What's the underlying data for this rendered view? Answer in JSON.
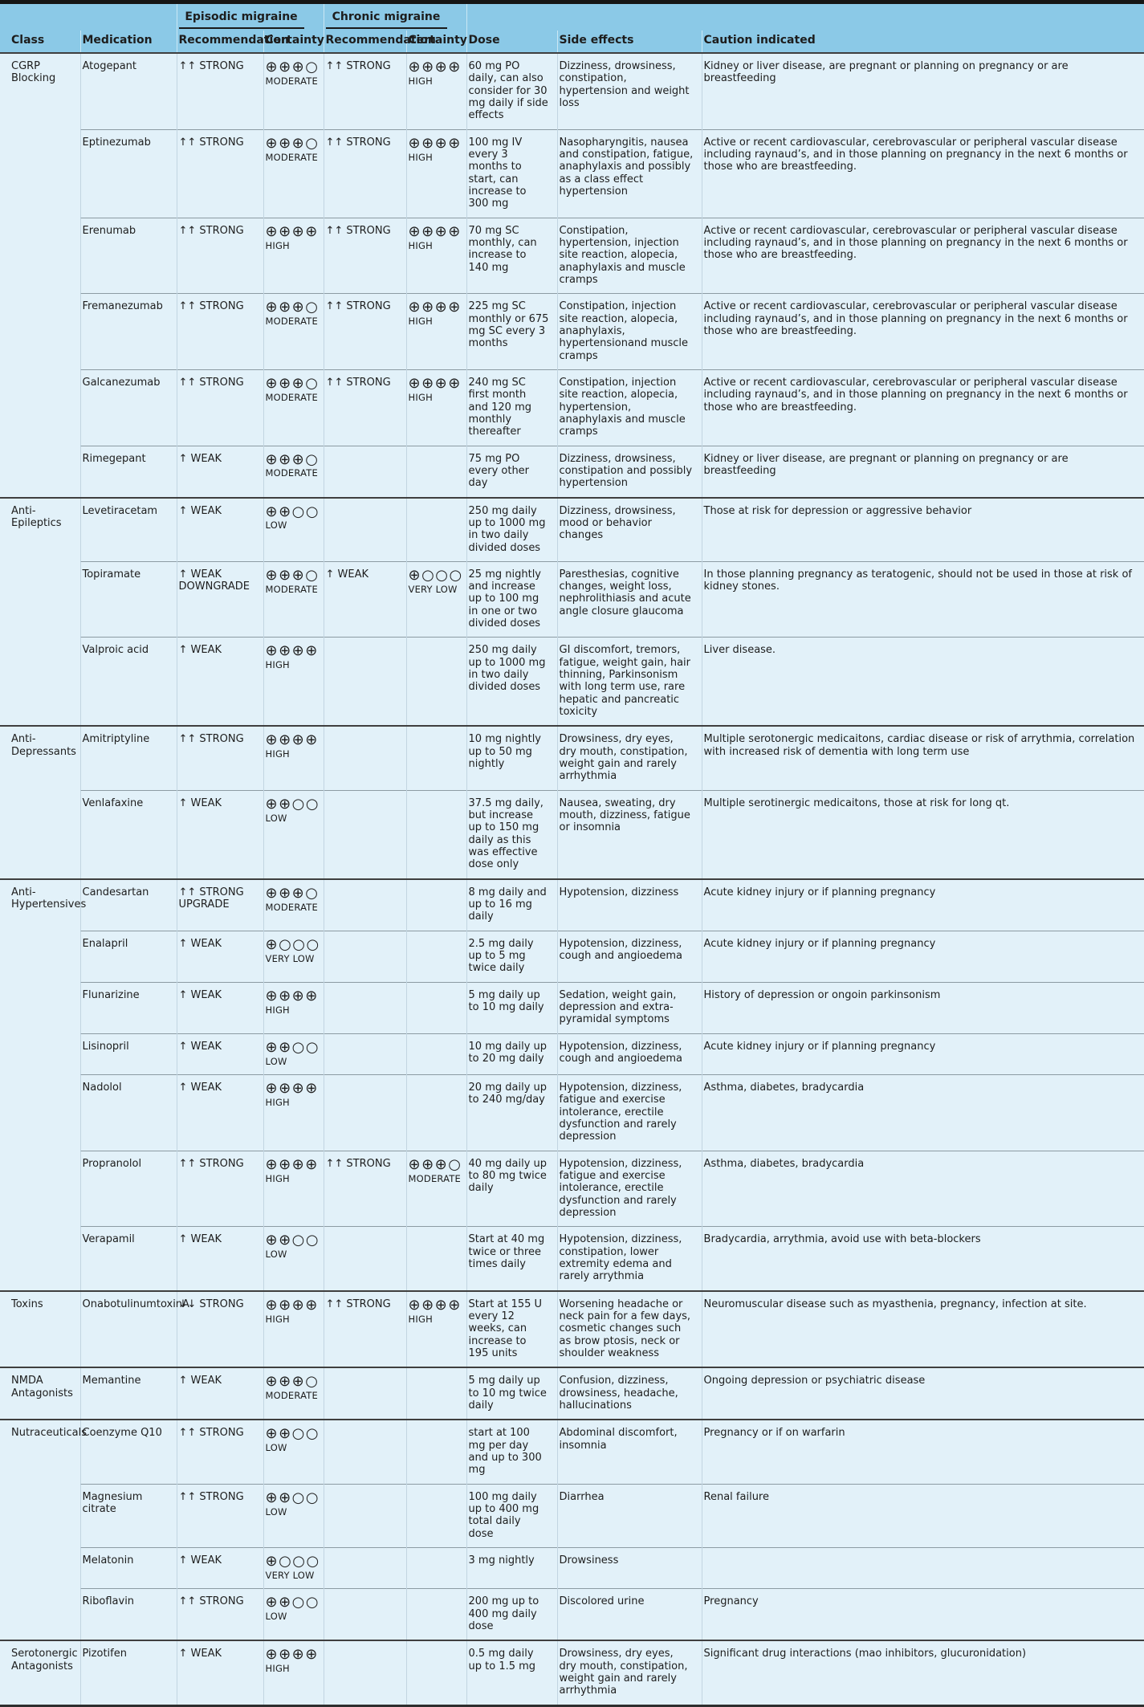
{
  "colors": {
    "header_bg": "#8bc9e7",
    "row_bg": "#e2f1f9",
    "top_rule": "#151515",
    "group_rule": "#3f3f3f",
    "inner_rule": "#8c9ba3",
    "text": "#1d1d1d"
  },
  "table": {
    "column_groups": [
      "Episodic migraine",
      "Chronic migraine"
    ],
    "headers": [
      "Class",
      "Medication",
      "Recommendation",
      "Certainty",
      "Recommendation",
      "Certainty",
      "Dose",
      "Side effects",
      "Caution indicated"
    ],
    "groups": [
      {
        "class": "CGRP Blocking",
        "medications": [
          {
            "name": "Atogepant",
            "ep_rec": "↑↑ STRONG",
            "ep_sym": "⊕⊕⊕○",
            "ep_lvl": "MODERATE",
            "ch_rec": "↑↑ STRONG",
            "ch_sym": "⊕⊕⊕⊕",
            "ch_lvl": "HIGH",
            "dose": "60 mg PO daily, can also consider for 30 mg daily if side effects",
            "side_effects": "Dizziness, drowsiness, constipation, hypertension and weight loss",
            "caution": "Kidney or liver disease, are pregnant or planning on pregnancy or are breastfeeding"
          },
          {
            "name": "Eptinezumab",
            "ep_rec": "↑↑ STRONG",
            "ep_sym": "⊕⊕⊕○",
            "ep_lvl": "MODERATE",
            "ch_rec": "↑↑ STRONG",
            "ch_sym": "⊕⊕⊕⊕",
            "ch_lvl": "HIGH",
            "dose": "100 mg IV every 3 months to start, can increase to 300 mg",
            "side_effects": "Nasopharyngitis, nausea and constipation, fatigue, anaphylaxis and possibly as a class effect hypertension",
            "caution": "Active or recent cardiovascular, cerebrovascular or peripheral vascular disease including raynaud’s, and in those planning on pregnancy in the next 6 months or those who are breastfeeding."
          },
          {
            "name": "Erenumab",
            "ep_rec": "↑↑ STRONG",
            "ep_sym": "⊕⊕⊕⊕",
            "ep_lvl": "HIGH",
            "ch_rec": "↑↑ STRONG",
            "ch_sym": "⊕⊕⊕⊕",
            "ch_lvl": "HIGH",
            "dose": "70 mg SC monthly, can increase to 140 mg",
            "side_effects": "Constipation, hypertension, injection site reaction, alopecia, anaphylaxis and muscle cramps",
            "caution": "Active or recent cardiovascular, cerebrovascular or peripheral vascular disease including raynaud’s, and in those planning on pregnancy in the next 6 months or those who are breastfeeding."
          },
          {
            "name": "Fremanezumab",
            "ep_rec": "↑↑ STRONG",
            "ep_sym": "⊕⊕⊕○",
            "ep_lvl": "MODERATE",
            "ch_rec": "↑↑ STRONG",
            "ch_sym": "⊕⊕⊕⊕",
            "ch_lvl": "HIGH",
            "dose": "225 mg SC monthly or 675 mg SC every 3 months",
            "side_effects": "Constipation, injection site reaction, alopecia, anaphylaxis, hypertensionand muscle cramps",
            "caution": "Active or recent cardiovascular, cerebrovascular or peripheral vascular disease including raynaud’s, and in those planning on pregnancy in the next 6 months or those who are breastfeeding."
          },
          {
            "name": "Galcanezumab",
            "ep_rec": "↑↑ STRONG",
            "ep_sym": "⊕⊕⊕○",
            "ep_lvl": "MODERATE",
            "ch_rec": "↑↑ STRONG",
            "ch_sym": "⊕⊕⊕⊕",
            "ch_lvl": "HIGH",
            "dose": "240 mg SC first month and 120 mg monthly thereafter",
            "side_effects": "Constipation, injection site reaction, alopecia, hypertension, anaphylaxis and muscle cramps",
            "caution": "Active or recent cardiovascular, cerebrovascular or peripheral vascular disease including raynaud’s, and in those planning on pregnancy in the next 6 months or those who are breastfeeding."
          },
          {
            "name": "Rimegepant",
            "ep_rec": "↑ WEAK",
            "ep_sym": "⊕⊕⊕○",
            "ep_lvl": "MODERATE",
            "ch_rec": "",
            "ch_sym": "",
            "ch_lvl": "",
            "dose": "75 mg PO every other day",
            "side_effects": "Dizziness, drowsiness, constipation and possibly hypertension",
            "caution": "Kidney or liver disease, are pregnant or planning on pregnancy or are breastfeeding"
          }
        ]
      },
      {
        "class": "Anti-Epileptics",
        "medications": [
          {
            "name": "Levetiracetam",
            "ep_rec": "↑ WEAK",
            "ep_sym": "⊕⊕○○",
            "ep_lvl": "LOW",
            "ch_rec": "",
            "ch_sym": "",
            "ch_lvl": "",
            "dose": "250 mg daily up to 1000 mg in two daily divided doses",
            "side_effects": "Dizziness, drowsiness, mood or behavior changes",
            "caution": "Those at risk for depression or aggressive behavior"
          },
          {
            "name": "Topiramate",
            "ep_rec": "↑ WEAK\nDOWNGRADE",
            "ep_sym": "⊕⊕⊕○",
            "ep_lvl": "MODERATE",
            "ch_rec": "↑ WEAK",
            "ch_sym": "⊕○○○",
            "ch_lvl": "VERY LOW",
            "dose": "25 mg nightly and increase up to 100 mg in one or two divided doses",
            "side_effects": "Paresthesias, cognitive changes, weight loss, nephrolithiasis and acute angle closure glaucoma",
            "caution": "In those planning pregnancy as teratogenic, should not be used in those at risk of kidney stones."
          },
          {
            "name": "Valproic acid",
            "ep_rec": "↑ WEAK",
            "ep_sym": "⊕⊕⊕⊕",
            "ep_lvl": "HIGH",
            "ch_rec": "",
            "ch_sym": "",
            "ch_lvl": "",
            "dose": "250 mg daily up to 1000 mg in two daily divided doses",
            "side_effects": "GI discomfort, tremors, fatigue, weight gain, hair thinning, Parkinsonism with long term use, rare hepatic and pancreatic toxicity",
            "caution": "Liver disease."
          }
        ]
      },
      {
        "class": "Anti-Depressants",
        "medications": [
          {
            "name": "Amitriptyline",
            "ep_rec": "↑↑ STRONG",
            "ep_sym": "⊕⊕⊕⊕",
            "ep_lvl": "HIGH",
            "ch_rec": "",
            "ch_sym": "",
            "ch_lvl": "",
            "dose": "10 mg nightly up to 50 mg nightly",
            "side_effects": "Drowsiness, dry eyes, dry mouth, constipation, weight gain and rarely arrhythmia",
            "caution": "Multiple serotonergic medicaitons, cardiac disease or risk of arrythmia, correlation with increased risk of dementia with long term use"
          },
          {
            "name": "Venlafaxine",
            "ep_rec": "↑ WEAK",
            "ep_sym": "⊕⊕○○",
            "ep_lvl": "LOW",
            "ch_rec": "",
            "ch_sym": "",
            "ch_lvl": "",
            "dose": "37.5 mg daily, but increase up to 150 mg daily as this was effective dose only",
            "side_effects": "Nausea, sweating, dry mouth, dizziness, fatigue or insomnia",
            "caution": "Multiple serotinergic medicaitons, those at risk for long qt."
          }
        ]
      },
      {
        "class": "Anti-Hypertensives",
        "medications": [
          {
            "name": "Candesartan",
            "ep_rec": "↑↑ STRONG\nUPGRADE",
            "ep_sym": "⊕⊕⊕○",
            "ep_lvl": "MODERATE",
            "ch_rec": "",
            "ch_sym": "",
            "ch_lvl": "",
            "dose": "8 mg daily and up to 16 mg daily",
            "side_effects": "Hypotension, dizziness",
            "caution": "Acute kidney injury or if planning pregnancy"
          },
          {
            "name": "Enalapril",
            "ep_rec": "↑ WEAK",
            "ep_sym": "⊕○○○",
            "ep_lvl": "VERY LOW",
            "ch_rec": "",
            "ch_sym": "",
            "ch_lvl": "",
            "dose": "2.5 mg daily up to 5 mg twice daily",
            "side_effects": "Hypotension, dizziness, cough and angioedema",
            "caution": "Acute kidney injury or if planning pregnancy"
          },
          {
            "name": "Flunarizine",
            "ep_rec": "↑ WEAK",
            "ep_sym": "⊕⊕⊕⊕",
            "ep_lvl": "HIGH",
            "ch_rec": "",
            "ch_sym": "",
            "ch_lvl": "",
            "dose": "5 mg daily up to 10 mg daily",
            "side_effects": "Sedation, weight gain, depression and extra-pyramidal symptoms",
            "caution": "History of depression or ongoin parkinsonism"
          },
          {
            "name": "Lisinopril",
            "ep_rec": "↑ WEAK",
            "ep_sym": "⊕⊕○○",
            "ep_lvl": "LOW",
            "ch_rec": "",
            "ch_sym": "",
            "ch_lvl": "",
            "dose": "10 mg daily up to 20 mg daily",
            "side_effects": "Hypotension, dizziness, cough and angioedema",
            "caution": "Acute kidney injury or if planning pregnancy"
          },
          {
            "name": "Nadolol",
            "ep_rec": "↑ WEAK",
            "ep_sym": "⊕⊕⊕⊕",
            "ep_lvl": "HIGH",
            "ch_rec": "",
            "ch_sym": "",
            "ch_lvl": "",
            "dose": "20 mg daily up to 240 mg/day",
            "side_effects": "Hypotension, dizziness, fatigue and exercise intolerance, erectile dysfunction and rarely depression",
            "caution": "Asthma, diabetes, bradycardia"
          },
          {
            "name": "Propranolol",
            "ep_rec": "↑↑ STRONG",
            "ep_sym": "⊕⊕⊕⊕",
            "ep_lvl": "HIGH",
            "ch_rec": "↑↑ STRONG",
            "ch_sym": "⊕⊕⊕○",
            "ch_lvl": "MODERATE",
            "dose": "40 mg daily up to 80 mg twice daily",
            "side_effects": "Hypotension, dizziness, fatigue and exercise intolerance, erectile dysfunction and rarely depression",
            "caution": "Asthma, diabetes, bradycardia"
          },
          {
            "name": "Verapamil",
            "ep_rec": "↑ WEAK",
            "ep_sym": "⊕⊕○○",
            "ep_lvl": "LOW",
            "ch_rec": "",
            "ch_sym": "",
            "ch_lvl": "",
            "dose": "Start at 40 mg twice or three times daily",
            "side_effects": "Hypotension, dizziness, constipation, lower extremity edema and rarely arrythmia",
            "caution": "Bradycardia, arrythmia, avoid use with beta-blockers"
          }
        ]
      },
      {
        "class": "Toxins",
        "medications": [
          {
            "name": "OnabotulinumtoxinA",
            "ep_rec": "↓↓ STRONG",
            "ep_sym": "⊕⊕⊕⊕",
            "ep_lvl": "HIGH",
            "ch_rec": "↑↑ STRONG",
            "ch_sym": "⊕⊕⊕⊕",
            "ch_lvl": "HIGH",
            "dose": "Start at 155 U every 12 weeks, can increase to 195 units",
            "side_effects": "Worsening headache or neck pain for a few days, cosmetic changes such as brow ptosis, neck or shoulder weakness",
            "caution": "Neuromuscular disease such as myasthenia, pregnancy, infection at site."
          }
        ]
      },
      {
        "class": "NMDA Antagonists",
        "medications": [
          {
            "name": "Memantine",
            "ep_rec": "↑ WEAK",
            "ep_sym": "⊕⊕⊕○",
            "ep_lvl": "MODERATE",
            "ch_rec": "",
            "ch_sym": "",
            "ch_lvl": "",
            "dose": "5 mg daily up to 10 mg twice daily",
            "side_effects": "Confusion, dizziness, drowsiness, headache, hallucinations",
            "caution": "Ongoing depression or psychiatric disease"
          }
        ]
      },
      {
        "class": "Nutraceuticals",
        "medications": [
          {
            "name": "Coenzyme Q10",
            "ep_rec": "↑↑ STRONG",
            "ep_sym": "⊕⊕○○",
            "ep_lvl": "LOW",
            "ch_rec": "",
            "ch_sym": "",
            "ch_lvl": "",
            "dose": "start at 100 mg per day and up to 300 mg",
            "side_effects": "Abdominal discomfort, insomnia",
            "caution": "Pregnancy or if on warfarin"
          },
          {
            "name": "Magnesium citrate",
            "ep_rec": "↑↑ STRONG",
            "ep_sym": "⊕⊕○○",
            "ep_lvl": "LOW",
            "ch_rec": "",
            "ch_sym": "",
            "ch_lvl": "",
            "dose": "100 mg daily up to 400 mg total daily dose",
            "side_effects": "Diarrhea",
            "caution": "Renal failure"
          },
          {
            "name": "Melatonin",
            "ep_rec": "↑ WEAK",
            "ep_sym": "⊕○○○",
            "ep_lvl": "VERY LOW",
            "ch_rec": "",
            "ch_sym": "",
            "ch_lvl": "",
            "dose": "3 mg nightly",
            "side_effects": "Drowsiness",
            "caution": ""
          },
          {
            "name": "Riboflavin",
            "ep_rec": "↑↑ STRONG",
            "ep_sym": "⊕⊕○○",
            "ep_lvl": "LOW",
            "ch_rec": "",
            "ch_sym": "",
            "ch_lvl": "",
            "dose": "200 mg up to 400 mg daily dose",
            "side_effects": "Discolored urine",
            "caution": "Pregnancy"
          }
        ]
      },
      {
        "class": "Serotonergic Antagonists",
        "medications": [
          {
            "name": "Pizotifen",
            "ep_rec": "↑ WEAK",
            "ep_sym": "⊕⊕⊕⊕",
            "ep_lvl": "HIGH",
            "ch_rec": "",
            "ch_sym": "",
            "ch_lvl": "",
            "dose": "0.5 mg daily up to 1.5 mg",
            "side_effects": "Drowsiness, dry eyes, dry mouth, constipation, weight gain and rarely arrhythmia",
            "caution": "Significant drug interactions (mao inhibitors, glucuronidation)"
          }
        ]
      }
    ]
  }
}
